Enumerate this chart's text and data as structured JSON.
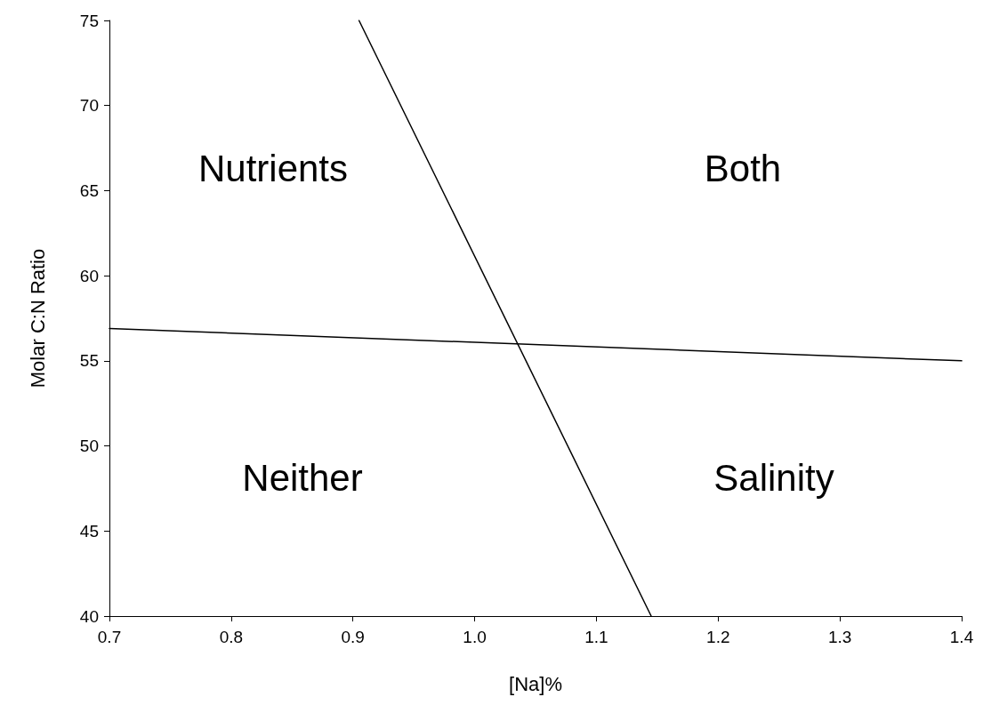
{
  "chart_data": {
    "type": "line",
    "xlabel": "[Na]%",
    "ylabel": "Molar C:N Ratio",
    "xlim": [
      0.7,
      1.4
    ],
    "xticks": [
      0.7,
      0.8,
      0.9,
      {
        "value": 1,
        "label": "1.0"
      },
      1.1,
      1.2,
      1.3,
      1.4
    ],
    "ylim": [
      40,
      75
    ],
    "yticks": [
      40,
      45,
      50,
      55,
      60,
      65,
      70,
      75
    ],
    "series": [
      {
        "color": "#000000",
        "x": [
          0.905,
          1.145
        ],
        "values": [
          75,
          40
        ]
      },
      {
        "color": "#000000",
        "x": [
          0.7,
          1.4
        ],
        "values": [
          56.9,
          55.0
        ]
      }
    ],
    "annotations": [
      "Nutrients",
      "Both",
      "Neither",
      "Salinity"
    ],
    "grid": false,
    "marker": "none",
    "line_style": "solid"
  }
}
